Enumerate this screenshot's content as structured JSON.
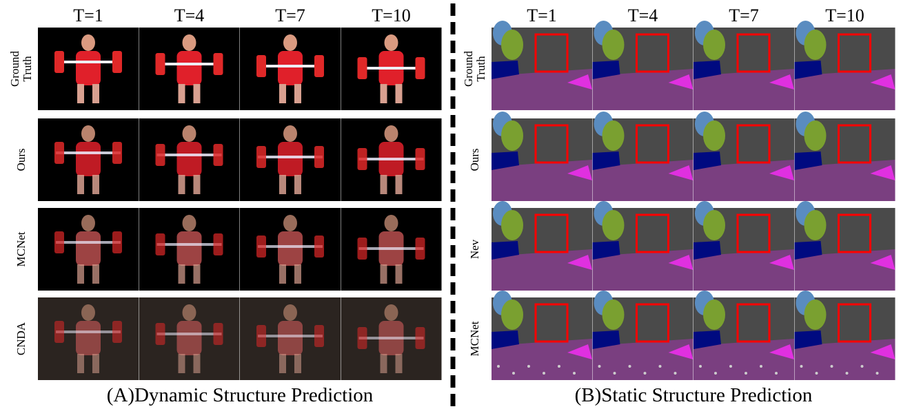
{
  "panels": [
    {
      "columns": [
        "T=1",
        "T=4",
        "T=7",
        "T=10"
      ],
      "rows": [
        "Ground Truth",
        "Ours",
        "MCNet",
        "CNDA"
      ],
      "caption": "(A)Dynamic Structure Prediction"
    },
    {
      "columns": [
        "T=1",
        "T=4",
        "T=7",
        "T=10"
      ],
      "rows": [
        "Ground Truth",
        "Ours",
        "Nev",
        "MCNet"
      ],
      "caption": "(B)Static Structure Prediction"
    }
  ]
}
